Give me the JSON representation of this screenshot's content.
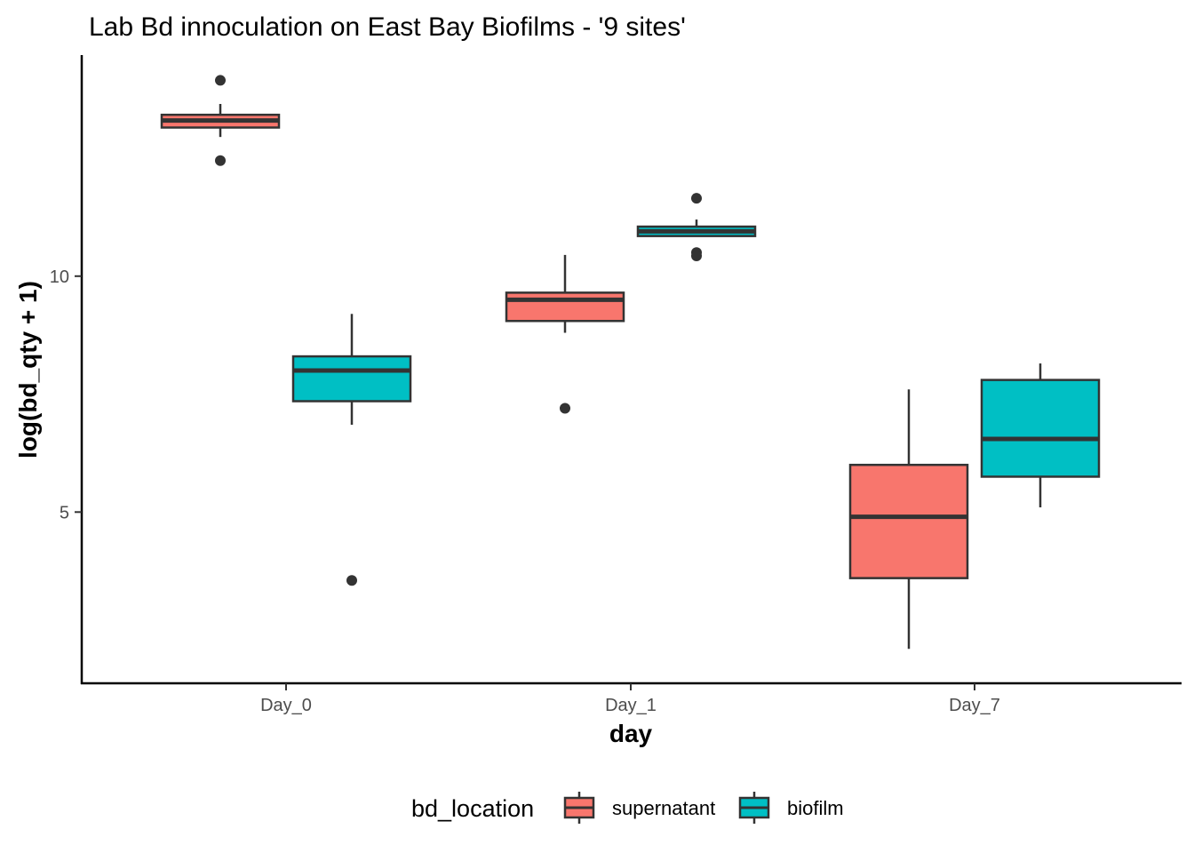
{
  "chart_data": {
    "type": "boxplot",
    "title": "Lab Bd innoculation on East Bay Biofilms - '9 sites'",
    "xlabel": "day",
    "ylabel": "log(bd_qty + 1)",
    "categories": [
      "Day_0",
      "Day_1",
      "Day_7"
    ],
    "y_ticks": [
      {
        "value": 5,
        "label": "5"
      },
      {
        "value": 10,
        "label": "10"
      }
    ],
    "ylim": [
      1.4,
      14.6
    ],
    "grid": false,
    "legend": {
      "title": "bd_location",
      "position": "bottom"
    },
    "series": [
      {
        "name": "supernatant",
        "color": "#F8766D",
        "boxes": [
          {
            "category": "Day_0",
            "min": 12.95,
            "q1": 13.15,
            "median": 13.3,
            "q3": 13.42,
            "max": 13.65,
            "outliers": [
              14.15,
              12.45
            ]
          },
          {
            "category": "Day_1",
            "min": 8.8,
            "q1": 9.05,
            "median": 9.5,
            "q3": 9.65,
            "max": 10.45,
            "outliers": [
              7.2
            ]
          },
          {
            "category": "Day_7",
            "min": 2.1,
            "q1": 3.6,
            "median": 4.9,
            "q3": 6.0,
            "max": 7.6,
            "outliers": []
          }
        ]
      },
      {
        "name": "biofilm",
        "color": "#00BFC4",
        "boxes": [
          {
            "category": "Day_0",
            "min": 6.85,
            "q1": 7.35,
            "median": 8.0,
            "q3": 8.3,
            "max": 9.2,
            "outliers": [
              3.55
            ]
          },
          {
            "category": "Day_1",
            "min": 10.85,
            "q1": 10.85,
            "median": 10.95,
            "q3": 11.05,
            "max": 11.2,
            "outliers": [
              11.65,
              10.5,
              10.43
            ]
          },
          {
            "category": "Day_7",
            "min": 5.1,
            "q1": 5.75,
            "median": 6.55,
            "q3": 7.8,
            "max": 8.15,
            "outliers": []
          }
        ]
      }
    ]
  }
}
